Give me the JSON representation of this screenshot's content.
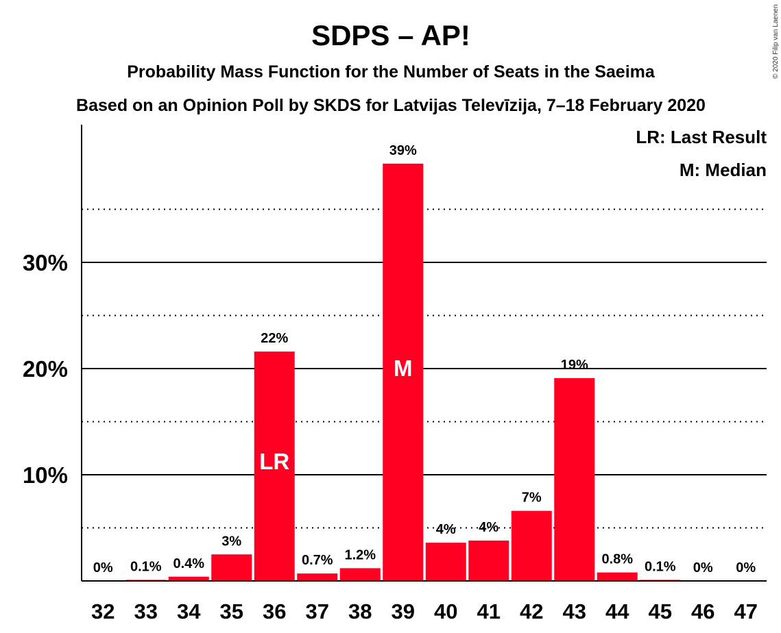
{
  "chart_data": {
    "type": "bar",
    "title": "SDPS – AP!",
    "subtitle": "Probability Mass Function for the Number of Seats in the Saeima",
    "subtitle2": "Based on an Opinion Poll by SKDS for Latvijas Televīzija, 7–18 February 2020",
    "copyright": "© 2020 Filip van Laenen",
    "legend": [
      "LR: Last Result",
      "M: Median"
    ],
    "legend_position": "top-right",
    "categories": [
      "32",
      "33",
      "34",
      "35",
      "36",
      "37",
      "38",
      "39",
      "40",
      "41",
      "42",
      "43",
      "44",
      "45",
      "46",
      "47"
    ],
    "values": [
      0,
      0.1,
      0.4,
      2.5,
      21.6,
      0.7,
      1.2,
      39.3,
      3.6,
      3.8,
      6.6,
      19.1,
      0.8,
      0.1,
      0,
      0
    ],
    "labels": [
      "0%",
      "0.1%",
      "0.4%",
      "3%",
      "22%",
      "0.7%",
      "1.2%",
      "39%",
      "4%",
      "4%",
      "7%",
      "19%",
      "0.8%",
      "0.1%",
      "0%",
      "0%"
    ],
    "markers": {
      "36": "LR",
      "39": "M"
    },
    "yticks": [
      10,
      20,
      30
    ],
    "ytick_labels": [
      "10%",
      "20%",
      "30%"
    ],
    "ylim": [
      0,
      43
    ],
    "bar_color": "#ff0022",
    "grid": "solid at 10% steps, dotted at 5% steps"
  }
}
